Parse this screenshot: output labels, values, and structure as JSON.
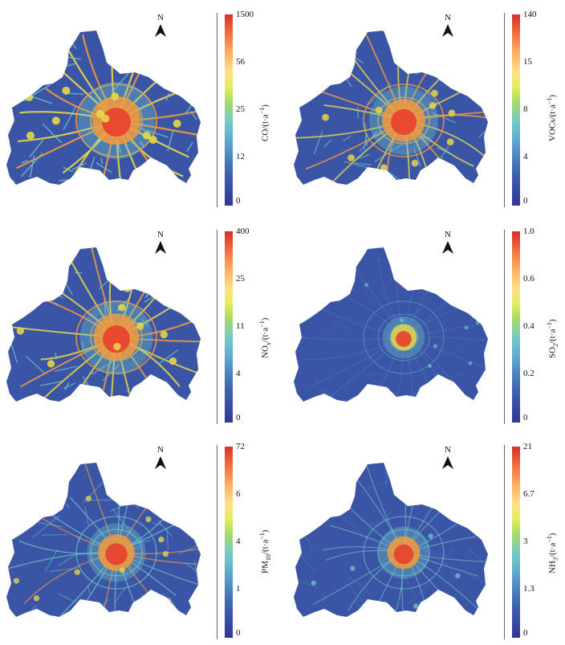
{
  "north_label": "N",
  "panels": [
    {
      "pollutant": "CO",
      "sub": "",
      "unit": "/(t·a",
      "exp": "−1",
      "close": ")",
      "ticks": [
        "1500",
        "56",
        "25",
        "12",
        "0"
      ],
      "intensity": 1.0
    },
    {
      "pollutant": "VOCs",
      "sub": "",
      "unit": "/(t·a",
      "exp": "−1",
      "close": ")",
      "ticks": [
        "140",
        "15",
        "8",
        "4",
        "0"
      ],
      "intensity": 0.8
    },
    {
      "pollutant": "NO",
      "sub": "x",
      "unit": "/(t·a",
      "exp": "−1",
      "close": ")",
      "ticks": [
        "400",
        "25",
        "11",
        "4",
        "0"
      ],
      "intensity": 0.9
    },
    {
      "pollutant": "SO",
      "sub": "2",
      "unit": "/(t·a",
      "exp": "−1",
      "close": ")",
      "ticks": [
        "1.0",
        "0.6",
        "0.4",
        "0.2",
        "0"
      ],
      "intensity": 0.15
    },
    {
      "pollutant": "PM",
      "sub": "10",
      "unit": "/(t·a",
      "exp": "−1",
      "close": ")",
      "ticks": [
        "72",
        "6",
        "4",
        "1",
        "0"
      ],
      "intensity": 0.55
    },
    {
      "pollutant": "NH",
      "sub": "3",
      "unit": "/(t·a",
      "exp": "−1",
      "close": ")",
      "ticks": [
        "21",
        "6.7",
        "3",
        "1.3",
        "0"
      ],
      "intensity": 0.4
    }
  ],
  "colors": {
    "background": "#3b55a6",
    "low": "#4a90c8",
    "mid": "#74c8c8",
    "high_yellow": "#e6d84a",
    "high_orange": "#f39a3c",
    "high_red": "#e8402c"
  }
}
